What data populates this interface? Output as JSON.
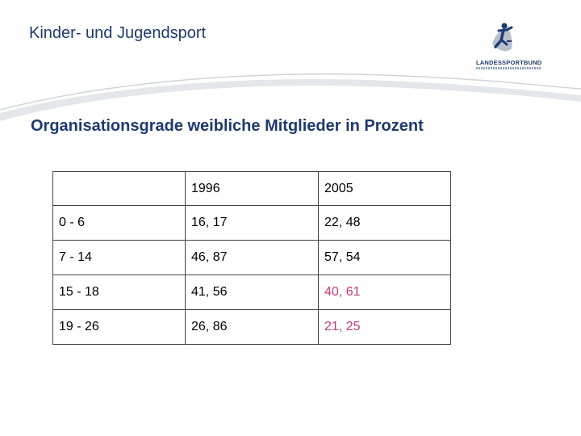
{
  "header": {
    "title": "Kinder- und Jugendsport",
    "logo_text": "LANDESSPORTBUND"
  },
  "heading": "Organisationsgrade weibliche Mitglieder in Prozent",
  "table": {
    "columns": [
      "",
      "1996",
      "2005"
    ],
    "rows": [
      {
        "age": "0 - 6",
        "y1996": "16, 17",
        "y2005": "22, 48",
        "highlight": false
      },
      {
        "age": "7 - 14",
        "y1996": "46, 87",
        "y2005": "57, 54",
        "highlight": false
      },
      {
        "age": "15 - 18",
        "y1996": "41, 56",
        "y2005": "40, 61",
        "highlight": true
      },
      {
        "age": "19 - 26",
        "y1996": "26, 86",
        "y2005": "21, 25",
        "highlight": true
      }
    ]
  },
  "colors": {
    "title_blue": "#1f3a6e",
    "highlight_pink": "#c0397a",
    "swoosh_gray": "#d9dde3"
  }
}
